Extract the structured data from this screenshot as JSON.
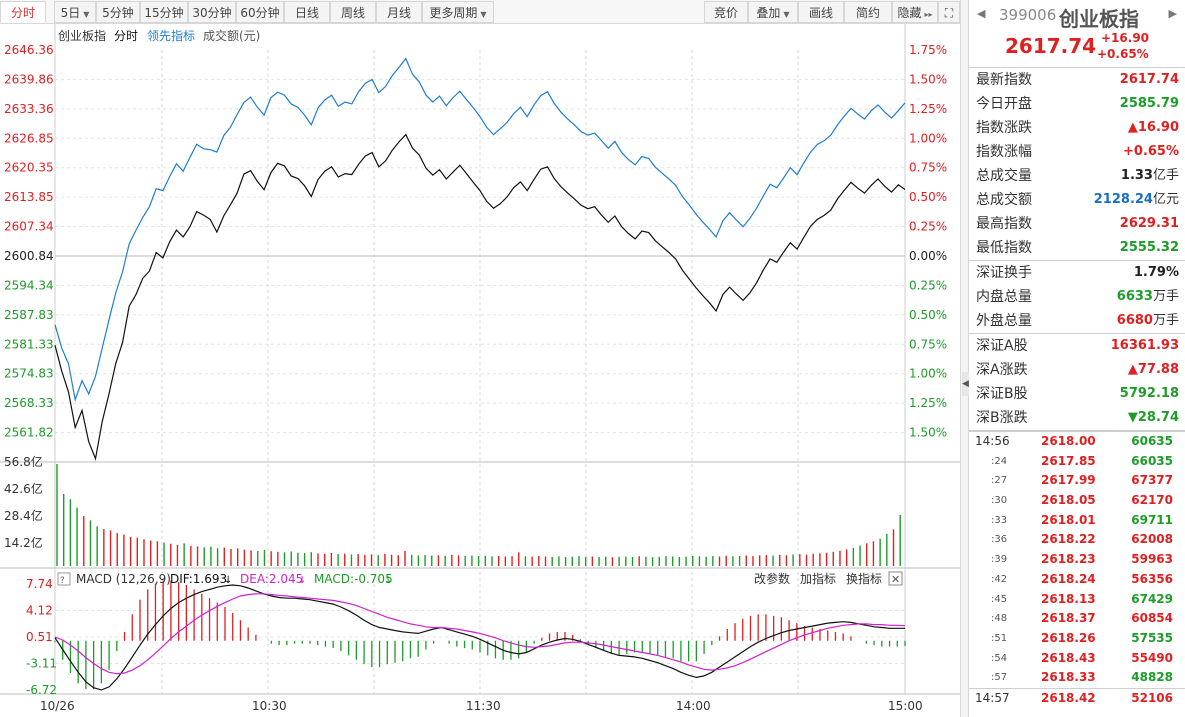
{
  "toolbar": {
    "fenshi": "分时",
    "day5": "5日",
    "m5": "5分钟",
    "m15": "15分钟",
    "m30": "30分钟",
    "m60": "60分钟",
    "daily": "日线",
    "weekly": "周线",
    "monthly": "月线",
    "more": "更多周期",
    "auction": "竞价",
    "overlay": "叠加",
    "draw": "画线",
    "simple": "简约",
    "hide": "隐藏"
  },
  "chart_header": {
    "name": "创业板指",
    "mode": "分时",
    "leading": "领先指标",
    "turnover": "成交额(元)"
  },
  "price_axis_left": [
    "2646.36",
    "2639.86",
    "2633.36",
    "2626.85",
    "2620.35",
    "2613.85",
    "2607.34",
    "2600.84",
    "2594.34",
    "2587.83",
    "2581.33",
    "2574.83",
    "2568.33",
    "2561.82"
  ],
  "pct_axis_right": [
    "1.75%",
    "1.50%",
    "1.25%",
    "1.00%",
    "0.75%",
    "0.50%",
    "0.25%",
    "0.00%",
    "0.25%",
    "0.50%",
    "0.75%",
    "1.00%",
    "1.25%",
    "1.50%"
  ],
  "volume_axis": [
    "56.8亿",
    "42.6亿",
    "28.4亿",
    "14.2亿"
  ],
  "macd": {
    "title": "MACD (12,26,9)",
    "dif": "DIF:1.693",
    "dea": "DEA:2.045",
    "macd": "MACD:-0.705",
    "change_params": "改参数",
    "add_indicator": "加指标",
    "switch_indicator": "换指标",
    "axis": [
      "7.74",
      "4.12",
      "0.51",
      "-3.11",
      "-6.72"
    ]
  },
  "time_axis": [
    "10/26",
    "10:30",
    "11:30",
    "14:00",
    "15:00"
  ],
  "colors": {
    "up": "#e02020",
    "down": "#1c9c28",
    "price_line": "#111111",
    "leading_line": "#1f7ed0",
    "dea": "#d020d0"
  },
  "quote": {
    "code": "399006",
    "name": "创业板指",
    "price": "2617.74",
    "change": "+16.90",
    "change_pct": "+0.65%",
    "rows1": [
      {
        "k": "最新指数",
        "v": "2617.74",
        "c": "red"
      },
      {
        "k": "今日开盘",
        "v": "2585.79",
        "c": "green"
      },
      {
        "k": "指数涨跌",
        "v": "▲16.90",
        "c": "red"
      },
      {
        "k": "指数涨幅",
        "v": "+0.65%",
        "c": "red"
      },
      {
        "k": "总成交量",
        "v": "1.33",
        "u": "亿手",
        "c": "black"
      },
      {
        "k": "总成交额",
        "v": "2128.24",
        "u": "亿元",
        "c": "blue"
      },
      {
        "k": "最高指数",
        "v": "2629.31",
        "c": "red"
      },
      {
        "k": "最低指数",
        "v": "2555.32",
        "c": "green"
      }
    ],
    "rows2": [
      {
        "k": "深证换手",
        "v": "1.79%",
        "c": "black"
      },
      {
        "k": "内盘总量",
        "v": "6633",
        "u": "万手",
        "c": "green"
      },
      {
        "k": "外盘总量",
        "v": "6680",
        "u": "万手",
        "c": "red"
      }
    ],
    "rows3": [
      {
        "k": "深证A股",
        "v": "16361.93",
        "c": "red"
      },
      {
        "k": "深A涨跌",
        "v": "▲77.88",
        "c": "red"
      },
      {
        "k": "深证B股",
        "v": "5792.18",
        "c": "green"
      },
      {
        "k": "深B涨跌",
        "v": "▼28.74",
        "c": "green"
      }
    ]
  },
  "ticks": [
    {
      "t": "14:56",
      "p": "2618.00",
      "q": "60635",
      "qc": "green"
    },
    {
      "t": ":24",
      "p": "2617.85",
      "q": "66035",
      "qc": "green"
    },
    {
      "t": ":27",
      "p": "2617.99",
      "q": "67377",
      "qc": "red"
    },
    {
      "t": ":30",
      "p": "2618.05",
      "q": "62170",
      "qc": "red"
    },
    {
      "t": ":33",
      "p": "2618.01",
      "q": "69711",
      "qc": "green"
    },
    {
      "t": ":36",
      "p": "2618.22",
      "q": "62008",
      "qc": "red"
    },
    {
      "t": ":39",
      "p": "2618.23",
      "q": "59963",
      "qc": "red"
    },
    {
      "t": ":42",
      "p": "2618.24",
      "q": "56356",
      "qc": "red"
    },
    {
      "t": ":45",
      "p": "2618.13",
      "q": "67429",
      "qc": "green"
    },
    {
      "t": ":48",
      "p": "2618.37",
      "q": "60854",
      "qc": "red"
    },
    {
      "t": ":51",
      "p": "2618.26",
      "q": "57535",
      "qc": "green"
    },
    {
      "t": ":54",
      "p": "2618.43",
      "q": "55490",
      "qc": "red"
    },
    {
      "t": ":57",
      "p": "2618.33",
      "q": "48828",
      "qc": "green"
    },
    {
      "t": "14:57",
      "p": "2618.42",
      "q": "52106",
      "qc": "red"
    }
  ],
  "chart_data": {
    "type": "line",
    "price_series": [
      2585.79,
      2580.5,
      2576.2,
      2568.9,
      2572.4,
      2566.0,
      2562.5,
      2570.1,
      2575.8,
      2582.0,
      2586.3,
      2593.8,
      2596.2,
      2599.5,
      2601.0,
      2604.8,
      2603.7,
      2607.0,
      2609.4,
      2608.0,
      2610.1,
      2613.2,
      2612.5,
      2611.6,
      2609.0,
      2612.3,
      2614.6,
      2617.0,
      2620.9,
      2621.6,
      2619.4,
      2617.7,
      2621.2,
      2623.1,
      2622.6,
      2620.5,
      2620.0,
      2618.5,
      2616.3,
      2619.8,
      2621.5,
      2622.4,
      2620.3,
      2621.0,
      2620.8,
      2622.9,
      2624.6,
      2625.3,
      2622.4,
      2623.6,
      2625.8,
      2627.5,
      2629.0,
      2626.2,
      2624.8,
      2622.1,
      2620.7,
      2621.8,
      2619.9,
      2621.3,
      2622.7,
      2621.0,
      2619.2,
      2617.5,
      2615.3,
      2613.9,
      2614.8,
      2616.2,
      2618.1,
      2619.3,
      2617.5,
      2619.8,
      2621.9,
      2622.4,
      2620.0,
      2618.3,
      2617.0,
      2615.8,
      2614.5,
      2613.8,
      2614.2,
      2612.5,
      2611.0,
      2612.3,
      2610.1,
      2608.7,
      2607.6,
      2609.2,
      2608.9,
      2607.2,
      2606.0,
      2604.8,
      2603.5,
      2601.2,
      2599.4,
      2597.6,
      2596.0,
      2594.5,
      2592.8,
      2596.2,
      2597.7,
      2596.3,
      2595.0,
      2596.5,
      2598.6,
      2601.2,
      2603.5,
      2602.8,
      2604.9,
      2606.8,
      2605.5,
      2607.9,
      2610.2,
      2611.6,
      2612.4,
      2613.5,
      2615.8,
      2617.6,
      2619.2,
      2618.0,
      2617.0,
      2618.6,
      2619.9,
      2618.4,
      2617.2,
      2618.7,
      2617.74
    ],
    "leading_series": [
      2590.0,
      2585.2,
      2582.0,
      2574.6,
      2578.5,
      2575.8,
      2579.4,
      2585.2,
      2591.0,
      2596.5,
      2600.8,
      2606.6,
      2609.4,
      2612.0,
      2614.2,
      2617.9,
      2617.5,
      2620.4,
      2623.0,
      2621.5,
      2624.3,
      2627.0,
      2626.1,
      2625.9,
      2625.4,
      2628.8,
      2630.5,
      2633.1,
      2635.6,
      2636.7,
      2634.6,
      2633.0,
      2636.6,
      2637.7,
      2637.1,
      2635.3,
      2634.6,
      2633.0,
      2631.0,
      2634.5,
      2636.1,
      2637.1,
      2634.8,
      2635.7,
      2635.3,
      2637.8,
      2639.5,
      2640.3,
      2637.6,
      2638.9,
      2641.1,
      2642.8,
      2644.6,
      2641.4,
      2639.8,
      2637.1,
      2635.7,
      2636.9,
      2634.9,
      2636.6,
      2637.9,
      2636.2,
      2634.5,
      2632.7,
      2630.5,
      2629.0,
      2630.2,
      2631.5,
      2633.3,
      2634.6,
      2632.7,
      2635.1,
      2637.0,
      2637.8,
      2635.4,
      2633.6,
      2632.2,
      2631.0,
      2629.6,
      2628.9,
      2629.3,
      2627.8,
      2626.2,
      2627.6,
      2625.3,
      2623.9,
      2622.8,
      2624.5,
      2624.1,
      2622.3,
      2621.1,
      2619.9,
      2618.6,
      2616.3,
      2614.6,
      2612.7,
      2611.1,
      2609.6,
      2608.0,
      2611.3,
      2613.0,
      2611.5,
      2610.1,
      2611.8,
      2613.9,
      2616.4,
      2618.8,
      2618.1,
      2620.1,
      2622.2,
      2620.8,
      2623.2,
      2625.4,
      2627.0,
      2627.7,
      2628.9,
      2631.0,
      2632.8,
      2634.4,
      2633.2,
      2632.2,
      2633.9,
      2635.1,
      2633.6,
      2632.4,
      2633.9,
      2635.5
    ],
    "volume": [
      56.8,
      40.1,
      37.2,
      32.5,
      27.8,
      25.4,
      22.1,
      20.6,
      19.8,
      18.3,
      17.5,
      16.2,
      15.8,
      14.9,
      14.2,
      13.8,
      13.1,
      12.4,
      11.8,
      12.6,
      11.2,
      10.9,
      10.4,
      10.8,
      9.9,
      10.2,
      9.5,
      9.8,
      9.1,
      8.7,
      8.4,
      8.9,
      8.2,
      7.9,
      7.6,
      8.1,
      7.4,
      7.2,
      7.7,
      7.0,
      6.8,
      7.3,
      6.6,
      6.9,
      6.4,
      6.7,
      6.2,
      6.5,
      6.1,
      6.8,
      6.3,
      6.0,
      8.4,
      6.2,
      5.9,
      6.1,
      5.8,
      6.0,
      5.7,
      6.2,
      5.9,
      5.6,
      5.8,
      5.5,
      5.7,
      5.4,
      5.6,
      5.3,
      5.5,
      7.6,
      5.4,
      5.2,
      5.6,
      5.3,
      5.1,
      5.4,
      5.0,
      5.2,
      5.5,
      5.1,
      5.3,
      5.0,
      5.2,
      4.9,
      5.1,
      5.3,
      5.0,
      5.4,
      5.2,
      4.9,
      5.1,
      5.5,
      5.3,
      5.0,
      5.2,
      5.6,
      5.4,
      5.2,
      5.5,
      5.3,
      5.7,
      5.4,
      5.6,
      5.8,
      5.5,
      5.9,
      6.1,
      5.8,
      6.2,
      6.0,
      6.4,
      6.6,
      6.3,
      6.8,
      7.1,
      7.4,
      7.9,
      8.5,
      9.2,
      10.1,
      11.4,
      12.6,
      13.8,
      15.2,
      17.9,
      20.4,
      28.4
    ],
    "macd_dif": [
      0.4,
      -1.2,
      -2.8,
      -4.3,
      -5.6,
      -6.4,
      -6.7,
      -6.3,
      -5.2,
      -3.8,
      -2.2,
      -0.6,
      0.9,
      2.2,
      3.4,
      4.4,
      5.2,
      5.8,
      6.3,
      6.7,
      7.0,
      7.3,
      7.5,
      7.6,
      7.5,
      7.2,
      6.8,
      6.4,
      6.1,
      5.9,
      5.8,
      5.8,
      5.7,
      5.6,
      5.4,
      5.2,
      5.0,
      4.6,
      4.1,
      3.5,
      2.8,
      2.2,
      1.8,
      1.6,
      1.4,
      1.2,
      1.1,
      1.0,
      1.3,
      1.6,
      1.8,
      1.5,
      1.2,
      0.9,
      0.6,
      0.2,
      -0.3,
      -0.8,
      -1.3,
      -1.6,
      -1.8,
      -1.6,
      -1.1,
      -0.6,
      -0.2,
      0.1,
      0.3,
      0.2,
      -0.1,
      -0.5,
      -0.9,
      -1.3,
      -1.7,
      -2.0,
      -2.1,
      -2.2,
      -2.4,
      -2.7,
      -3.0,
      -3.4,
      -3.8,
      -4.3,
      -4.7,
      -5.0,
      -4.8,
      -4.3,
      -3.6,
      -2.9,
      -2.2,
      -1.5,
      -0.8,
      -0.2,
      0.3,
      0.7,
      1.1,
      1.4,
      1.6,
      1.8,
      2.0,
      2.2,
      2.4,
      2.5,
      2.6,
      2.5,
      2.3,
      2.1,
      1.9,
      1.8,
      1.7,
      1.7,
      1.69
    ],
    "macd_dea": [
      0.5,
      0.1,
      -0.6,
      -1.4,
      -2.3,
      -3.1,
      -3.8,
      -4.3,
      -4.5,
      -4.4,
      -4.0,
      -3.4,
      -2.6,
      -1.7,
      -0.7,
      0.3,
      1.2,
      2.0,
      2.8,
      3.5,
      4.1,
      4.7,
      5.2,
      5.7,
      6.1,
      6.3,
      6.4,
      6.4,
      6.3,
      6.2,
      6.1,
      6.0,
      5.9,
      5.8,
      5.7,
      5.6,
      5.5,
      5.3,
      5.1,
      4.8,
      4.4,
      4.0,
      3.6,
      3.2,
      2.9,
      2.6,
      2.3,
      2.1,
      1.9,
      1.8,
      1.8,
      1.7,
      1.6,
      1.4,
      1.2,
      1.0,
      0.7,
      0.4,
      0.0,
      -0.3,
      -0.6,
      -0.8,
      -0.9,
      -0.8,
      -0.7,
      -0.5,
      -0.3,
      -0.2,
      -0.2,
      -0.3,
      -0.4,
      -0.6,
      -0.8,
      -1.0,
      -1.2,
      -1.4,
      -1.6,
      -1.8,
      -2.0,
      -2.3,
      -2.6,
      -2.9,
      -3.3,
      -3.6,
      -3.9,
      -4.0,
      -3.9,
      -3.7,
      -3.4,
      -3.0,
      -2.5,
      -2.0,
      -1.5,
      -1.0,
      -0.5,
      0.0,
      0.4,
      0.8,
      1.1,
      1.4,
      1.7,
      1.9,
      2.1,
      2.2,
      2.3,
      2.3,
      2.2,
      2.2,
      2.1,
      2.1,
      2.045
    ],
    "ylim_price": [
      2561.82,
      2646.36
    ],
    "ylim_volume": [
      0,
      56.8
    ],
    "ylim_macd": [
      -6.72,
      7.74
    ]
  }
}
